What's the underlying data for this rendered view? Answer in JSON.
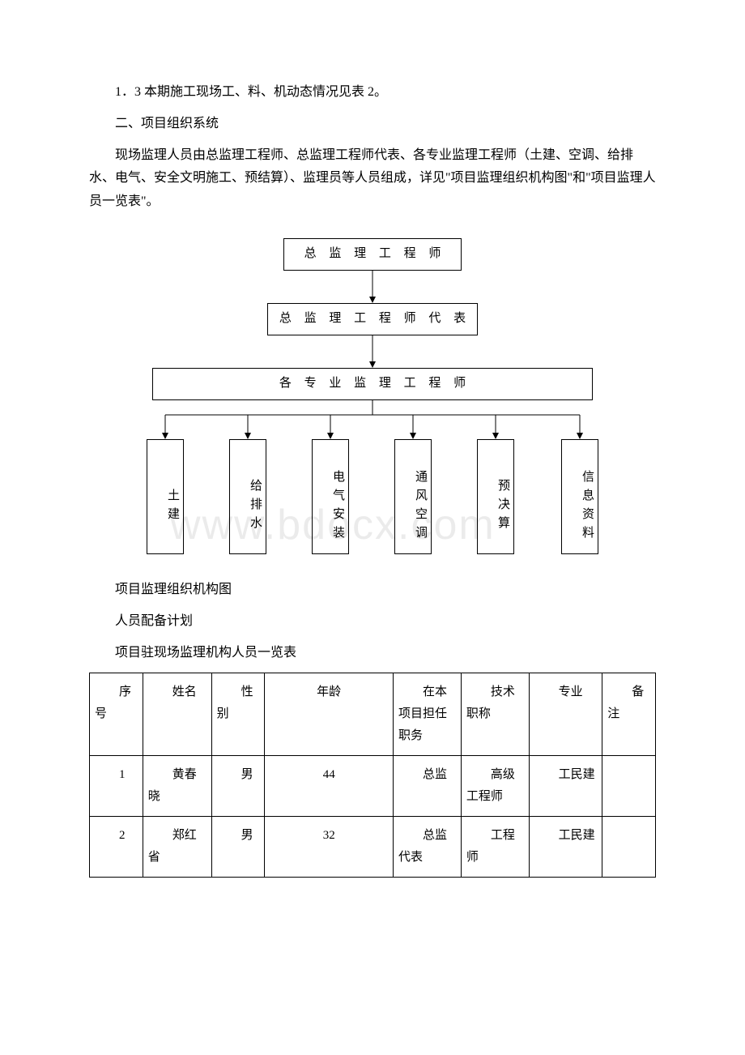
{
  "paragraphs": {
    "p1": "1．3 本期施工现场工、料、机动态情况见表 2。",
    "p2_title": "二、项目组织系统",
    "p3": "现场监理人员由总监理工程师、总监理工程师代表、各专业监理工程师（土建、空调、给排水、电气、安全文明施工、预结算）、监理员等人员组成，详见\"项目监理组织机构图\"和\"项目监理人员一览表\"。"
  },
  "org_chart": {
    "level1": "总 监 理 工 程 师",
    "level2": "总 监 理 工 程 师 代 表",
    "level3": "各 专 业 监 理 工 程 师",
    "leaves": [
      "土建",
      "给排水",
      "电气安装",
      "通风空调",
      "预决算",
      "信息资料"
    ],
    "node_border_color": "#000000",
    "arrow_color": "#000000"
  },
  "captions": {
    "c1": "项目监理组织机构图",
    "c2": "人员配备计划",
    "c3": "项目驻现场监理机构人员一览表"
  },
  "watermark": "www.bdocx.com",
  "table": {
    "col_widths": [
      "58px",
      "75px",
      "52px",
      "140px",
      "74px",
      "74px",
      "80px",
      "58px"
    ],
    "headers": [
      "序号",
      "姓名",
      "性别",
      "年龄",
      "在本项目担任职务",
      "技术职称",
      "专业",
      "备注"
    ],
    "rows": [
      [
        "1",
        "黄春晓",
        "男",
        "44",
        "总监",
        "高级工程师",
        "工民建",
        ""
      ],
      [
        "2",
        "郑红省",
        "男",
        "32",
        "总监代表",
        "工程师",
        "工民建",
        ""
      ]
    ]
  }
}
